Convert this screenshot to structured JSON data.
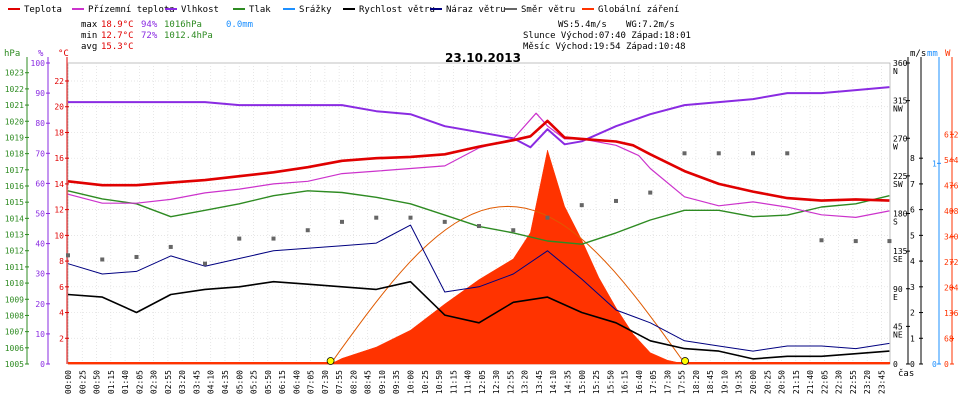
{
  "legend": [
    {
      "label": "Teplota",
      "color": "#e00000"
    },
    {
      "label": "Přízemní teplota",
      "color": "#cc33cc"
    },
    {
      "label": "Vlhkost",
      "color": "#8a2be2"
    },
    {
      "label": "Tlak",
      "color": "#2e8b22"
    },
    {
      "label": "Srážky",
      "color": "#1e90ff"
    },
    {
      "label": "Rychlost větru",
      "color": "#000000"
    },
    {
      "label": "Náraz větru",
      "color": "#000080"
    },
    {
      "label": "Směr větru",
      "color": "#666666"
    },
    {
      "label": "Globální záření",
      "color": "#ff3300"
    }
  ],
  "stats": {
    "max_label": "max",
    "max_temp": "18.9°C",
    "max_hum": "94%",
    "max_press": "1016hPa",
    "max_rain": "0.0mm",
    "min_label": "min",
    "min_temp": "12.7°C",
    "min_hum": "72%",
    "min_press": "1012.4hPa",
    "avg_label": "avg",
    "avg_temp": "15.3°C"
  },
  "astro": {
    "ws": "WS:5.4m/s",
    "wg": "WG:7.2m/s",
    "sun": "Slunce Východ:07:40  Západ:18:01",
    "moon": "Měsíc  Východ:19:54  Západ:10:48"
  },
  "date_title": "23.10.2013",
  "time_axis_label": "čas",
  "colors": {
    "temp": "#e00000",
    "ground": "#cc33cc",
    "hum": "#8a2be2",
    "press": "#2e8b22",
    "rain": "#1e90ff",
    "wind": "#000000",
    "gust": "#000080",
    "dir": "#666666",
    "solar": "#ff3300"
  },
  "chart_data": {
    "type": "line",
    "title": "23.10.2013",
    "x_ticks": [
      "00:00",
      "00:25",
      "00:50",
      "01:15",
      "01:40",
      "02:05",
      "02:30",
      "02:55",
      "03:20",
      "03:45",
      "04:10",
      "04:35",
      "05:00",
      "05:25",
      "05:50",
      "06:15",
      "06:40",
      "07:05",
      "07:30",
      "07:55",
      "08:20",
      "08:45",
      "09:10",
      "09:35",
      "10:00",
      "10:25",
      "10:50",
      "11:15",
      "11:40",
      "12:05",
      "12:30",
      "12:55",
      "13:20",
      "13:45",
      "14:10",
      "14:35",
      "15:00",
      "15:25",
      "15:50",
      "16:15",
      "16:40",
      "17:05",
      "17:30",
      "17:55",
      "18:20",
      "18:45",
      "19:10",
      "19:35",
      "20:00",
      "20:25",
      "20:50",
      "21:15",
      "21:40",
      "22:05",
      "22:30",
      "22:55",
      "23:20",
      "23:45"
    ],
    "axes": {
      "hPa": {
        "ticks": [
          "1005",
          "1006",
          "1007",
          "1008",
          "1009",
          "1010",
          "1011",
          "1012",
          "1013",
          "1014",
          "1015",
          "1016",
          "1017",
          "1018",
          "1019",
          "1020",
          "1021",
          "1022",
          "1023"
        ],
        "range": [
          1005,
          1023.6
        ]
      },
      "percent": {
        "ticks": [
          "0",
          "10",
          "20",
          "30",
          "40",
          "50",
          "60",
          "70",
          "80",
          "90",
          "100"
        ],
        "range": [
          0,
          100
        ]
      },
      "celsius": {
        "ticks": [
          "2",
          "4",
          "6",
          "8",
          "10",
          "12",
          "14",
          "16",
          "18",
          "20",
          "22"
        ],
        "range": [
          0,
          23.4
        ]
      },
      "direction": {
        "ticks": [
          "0",
          "45 NE",
          "90 E",
          "135 SE",
          "180 S",
          "225 SW",
          "270 W",
          "315 NW",
          "360 N"
        ],
        "range": [
          0,
          360
        ]
      },
      "ms": {
        "ticks": [
          "0",
          "1",
          "2",
          "3",
          "4",
          "5",
          "6",
          "7",
          "8"
        ],
        "range": [
          0,
          11.7
        ]
      },
      "mm": {
        "ticks": [
          "0",
          "1"
        ],
        "range": [
          0,
          1.5
        ]
      },
      "wm2": {
        "ticks": [
          "0",
          "68",
          "136",
          "204",
          "272",
          "340",
          "408",
          "476",
          "544",
          "612"
        ],
        "range": [
          0,
          802
        ]
      }
    },
    "series": [
      {
        "name": "Teplota",
        "unit": "°C",
        "x": [
          "00:00",
          "01:00",
          "02:00",
          "03:00",
          "04:00",
          "05:00",
          "06:00",
          "07:00",
          "08:00",
          "09:00",
          "10:00",
          "11:00",
          "12:00",
          "13:00",
          "13:30",
          "14:00",
          "14:30",
          "15:00",
          "16:00",
          "16:30",
          "17:00",
          "18:00",
          "19:00",
          "20:00",
          "21:00",
          "22:00",
          "23:00",
          "23:59"
        ],
        "y": [
          14.2,
          13.9,
          13.9,
          14.1,
          14.3,
          14.6,
          14.9,
          15.3,
          15.8,
          16.0,
          16.1,
          16.3,
          16.9,
          17.4,
          17.7,
          18.9,
          17.6,
          17.5,
          17.3,
          17.0,
          16.3,
          15.0,
          14.0,
          13.4,
          12.9,
          12.7,
          12.8,
          12.7
        ]
      },
      {
        "name": "Přízemní teplota",
        "unit": "°C",
        "x": [
          "00:00",
          "01:00",
          "02:00",
          "03:00",
          "04:00",
          "05:00",
          "06:00",
          "07:00",
          "08:00",
          "09:00",
          "10:00",
          "11:00",
          "12:00",
          "13:00",
          "13:40",
          "14:00",
          "14:30",
          "15:00",
          "16:00",
          "16:40",
          "17:00",
          "18:00",
          "19:00",
          "20:00",
          "21:00",
          "22:00",
          "23:00",
          "23:59"
        ],
        "y": [
          13.2,
          12.5,
          12.5,
          12.8,
          13.3,
          13.6,
          14.0,
          14.2,
          14.8,
          15.0,
          15.2,
          15.4,
          16.8,
          17.5,
          19.5,
          18.5,
          17.5,
          17.5,
          17.0,
          16.2,
          15.2,
          13.0,
          12.3,
          12.6,
          12.2,
          11.6,
          11.4,
          11.9
        ]
      },
      {
        "name": "Vlhkost",
        "unit": "%",
        "x": [
          "00:00",
          "01:00",
          "02:00",
          "03:00",
          "04:00",
          "05:00",
          "06:00",
          "07:00",
          "08:00",
          "09:00",
          "10:00",
          "11:00",
          "12:00",
          "13:00",
          "13:30",
          "14:00",
          "14:30",
          "15:00",
          "16:00",
          "17:00",
          "18:00",
          "19:00",
          "20:00",
          "21:00",
          "22:00",
          "23:00",
          "23:59"
        ],
        "y": [
          87,
          87,
          87,
          87,
          87,
          86,
          86,
          86,
          86,
          84,
          83,
          79,
          77,
          75,
          72,
          78,
          73,
          74,
          79,
          83,
          86,
          87,
          88,
          90,
          90,
          91,
          92
        ]
      },
      {
        "name": "Tlak",
        "unit": "hPa",
        "x": [
          "00:00",
          "01:00",
          "02:00",
          "03:00",
          "04:00",
          "05:00",
          "06:00",
          "07:00",
          "08:00",
          "09:00",
          "10:00",
          "11:00",
          "12:00",
          "13:00",
          "14:00",
          "15:00",
          "16:00",
          "17:00",
          "18:00",
          "19:00",
          "20:00",
          "21:00",
          "22:00",
          "23:00",
          "23:59"
        ],
        "y": [
          1015.7,
          1015.2,
          1014.9,
          1014.1,
          1014.5,
          1014.9,
          1015.4,
          1015.7,
          1015.6,
          1015.3,
          1014.9,
          1014.2,
          1013.5,
          1013.1,
          1012.6,
          1012.4,
          1013.1,
          1013.9,
          1014.5,
          1014.5,
          1014.1,
          1014.2,
          1014.7,
          1014.9,
          1015.4
        ]
      },
      {
        "name": "Rychlost větru",
        "unit": "m/s",
        "x": [
          "00:00",
          "01:00",
          "02:00",
          "03:00",
          "04:00",
          "05:00",
          "06:00",
          "07:00",
          "08:00",
          "09:00",
          "10:00",
          "11:00",
          "12:00",
          "13:00",
          "14:00",
          "15:00",
          "16:00",
          "17:00",
          "18:00",
          "19:00",
          "20:00",
          "21:00",
          "22:00",
          "23:00",
          "23:59"
        ],
        "y": [
          2.7,
          2.6,
          2.0,
          2.7,
          2.9,
          3.0,
          3.2,
          3.1,
          3.0,
          2.9,
          3.2,
          1.9,
          1.6,
          2.4,
          2.6,
          2.0,
          1.6,
          0.9,
          0.6,
          0.5,
          0.2,
          0.3,
          0.3,
          0.4,
          0.5
        ]
      },
      {
        "name": "Náraz větru",
        "unit": "m/s",
        "x": [
          "00:00",
          "01:00",
          "02:00",
          "03:00",
          "04:00",
          "05:00",
          "06:00",
          "07:00",
          "08:00",
          "09:00",
          "10:00",
          "11:00",
          "12:00",
          "13:00",
          "14:00",
          "15:00",
          "16:00",
          "17:00",
          "18:00",
          "19:00",
          "20:00",
          "21:00",
          "22:00",
          "23:00",
          "23:59"
        ],
        "y": [
          3.9,
          3.5,
          3.6,
          4.2,
          3.8,
          4.1,
          4.4,
          4.5,
          4.6,
          4.7,
          5.4,
          2.8,
          3.0,
          3.5,
          4.4,
          3.3,
          2.1,
          1.6,
          0.9,
          0.7,
          0.5,
          0.7,
          0.7,
          0.6,
          0.8
        ]
      },
      {
        "name": "Směr větru",
        "unit": "°",
        "x": [
          "00:00",
          "01:00",
          "02:00",
          "03:00",
          "04:00",
          "05:00",
          "06:00",
          "07:00",
          "08:00",
          "09:00",
          "10:00",
          "11:00",
          "12:00",
          "13:00",
          "14:00",
          "15:00",
          "16:00",
          "17:00",
          "18:00",
          "19:00",
          "20:00",
          "21:00",
          "22:00",
          "23:00",
          "23:59"
        ],
        "y": [
          130,
          125,
          128,
          140,
          120,
          150,
          150,
          160,
          170,
          175,
          175,
          170,
          165,
          160,
          175,
          190,
          195,
          205,
          252,
          252,
          252,
          252,
          148,
          147,
          147
        ]
      },
      {
        "name": "Globální záření",
        "unit": "W/m²",
        "x": [
          "00:00",
          "07:40",
          "08:00",
          "09:00",
          "10:00",
          "11:00",
          "12:00",
          "13:00",
          "13:30",
          "14:00",
          "14:30",
          "15:00",
          "15:30",
          "16:00",
          "16:30",
          "17:00",
          "17:30",
          "18:00",
          "23:59"
        ],
        "y": [
          0,
          0,
          15,
          45,
          90,
          160,
          225,
          280,
          350,
          570,
          420,
          330,
          230,
          150,
          80,
          30,
          10,
          0,
          0
        ]
      }
    ],
    "sunrise": "07:40",
    "sunset": "18:01"
  }
}
